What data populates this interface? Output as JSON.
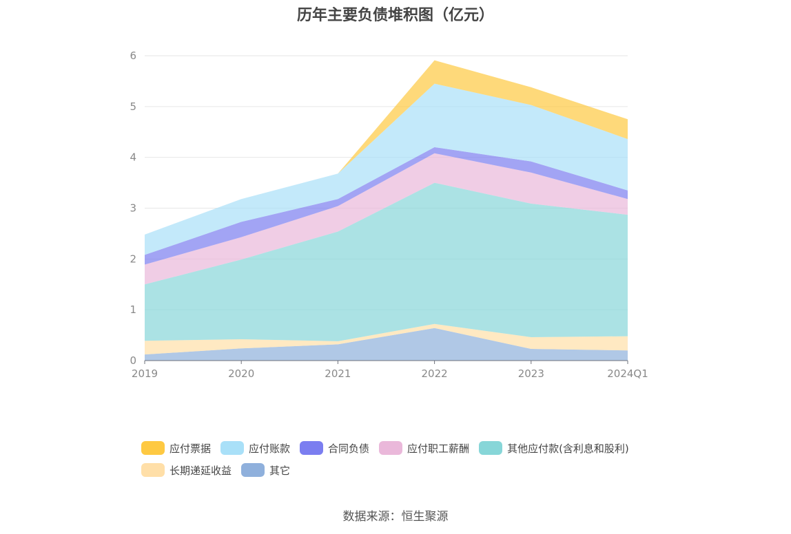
{
  "source_label": "数据来源：恒生聚源",
  "chart_data": {
    "type": "area",
    "stacked": true,
    "title": "历年主要负债堆积图（亿元）",
    "categories": [
      "2019",
      "2020",
      "2021",
      "2022",
      "2023",
      "2024Q1"
    ],
    "ylim": [
      0,
      6
    ],
    "yticks": [
      "0",
      "1",
      "2",
      "3",
      "4",
      "5",
      "6"
    ],
    "grid": true,
    "legend_position": "bottom",
    "series": [
      {
        "name": "其它",
        "color": "#8fb0dc",
        "values": [
          0.12,
          0.24,
          0.32,
          0.64,
          0.23,
          0.2
        ]
      },
      {
        "name": "长期递延收益",
        "color": "#ffdfa8",
        "values": [
          0.27,
          0.18,
          0.06,
          0.08,
          0.23,
          0.28
        ]
      },
      {
        "name": "其他应付款(含利息和股利)",
        "color": "#87d6d8",
        "values": [
          1.11,
          1.57,
          2.16,
          2.78,
          2.63,
          2.39
        ]
      },
      {
        "name": "应付职工薪酬",
        "color": "#eab8da",
        "values": [
          0.39,
          0.44,
          0.5,
          0.58,
          0.61,
          0.31
        ]
      },
      {
        "name": "合同负债",
        "color": "#7b7ef0",
        "values": [
          0.19,
          0.3,
          0.14,
          0.12,
          0.22,
          0.17
        ]
      },
      {
        "name": "应付账款",
        "color": "#a9e0f8",
        "values": [
          0.4,
          0.45,
          0.5,
          1.25,
          1.11,
          1.01
        ]
      },
      {
        "name": "应付票据",
        "color": "#fec942",
        "values": [
          0.0,
          0.0,
          0.0,
          0.46,
          0.35,
          0.39
        ]
      }
    ],
    "legend_order": [
      "应付票据",
      "应付账款",
      "合同负债",
      "应付职工薪酬",
      "其他应付款(含利息和股利)",
      "长期递延收益",
      "其它"
    ]
  }
}
